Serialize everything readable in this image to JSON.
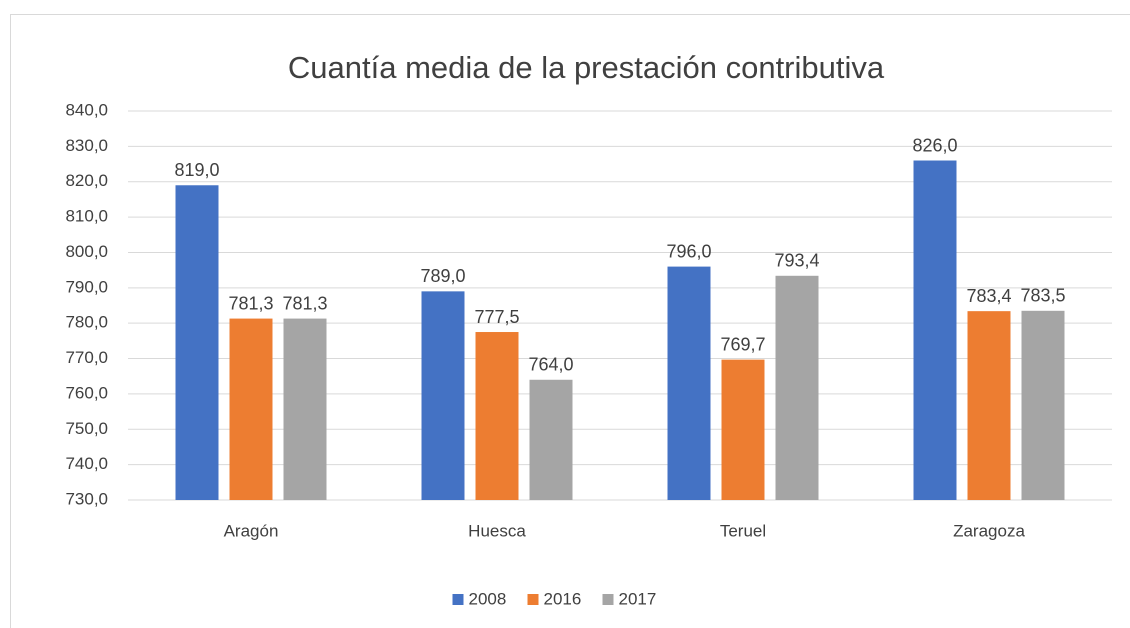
{
  "chart_data": {
    "type": "bar",
    "title": "Cuantía media de la prestación contributiva",
    "categories": [
      "Aragón",
      "Huesca",
      "Teruel",
      "Zaragoza"
    ],
    "series": [
      {
        "name": "2008",
        "color": "#4472c4",
        "values": [
          819.0,
          789.0,
          796.0,
          826.0
        ],
        "value_labels": [
          "819,0",
          "789,0",
          "796,0",
          "826,0"
        ]
      },
      {
        "name": "2016",
        "color": "#ed7d31",
        "values": [
          781.3,
          777.5,
          769.7,
          783.4
        ],
        "value_labels": [
          "781,3",
          "777,5",
          "769,7",
          "783,4"
        ]
      },
      {
        "name": "2017",
        "color": "#a5a5a5",
        "values": [
          781.3,
          764.0,
          793.4,
          783.5
        ],
        "value_labels": [
          "781,3",
          "764,0",
          "793,4",
          "783,5"
        ]
      }
    ],
    "ylim": [
      730,
      840
    ],
    "yticks": [
      {
        "value": 730,
        "label": "730,0"
      },
      {
        "value": 740,
        "label": "740,0"
      },
      {
        "value": 750,
        "label": "750,0"
      },
      {
        "value": 760,
        "label": "760,0"
      },
      {
        "value": 770,
        "label": "770,0"
      },
      {
        "value": 780,
        "label": "780,0"
      },
      {
        "value": 790,
        "label": "790,0"
      },
      {
        "value": 800,
        "label": "800,0"
      },
      {
        "value": 810,
        "label": "810,0"
      },
      {
        "value": 820,
        "label": "820,0"
      },
      {
        "value": 830,
        "label": "830,0"
      },
      {
        "value": 840,
        "label": "840,0"
      }
    ],
    "grid": true,
    "legend": "bottom"
  }
}
